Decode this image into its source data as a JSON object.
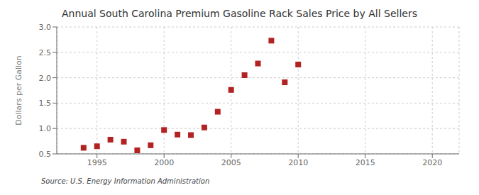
{
  "chart_data": {
    "type": "scatter",
    "title": "Annual South Carolina Premium Gasoline Rack Sales Price by All Sellers",
    "y_label": "Dollars per Gallon",
    "annotations": [
      "Source: U.S. Energy Information Administration"
    ],
    "x": [
      1994,
      1995,
      1996,
      1997,
      1998,
      1999,
      2000,
      2001,
      2002,
      2003,
      2004,
      2005,
      2006,
      2007,
      2008,
      2009,
      2010
    ],
    "values": [
      0.62,
      0.65,
      0.78,
      0.74,
      0.57,
      0.67,
      0.97,
      0.88,
      0.87,
      1.02,
      1.33,
      1.76,
      2.05,
      2.28,
      2.73,
      1.91,
      2.26
    ],
    "color": "#b22222",
    "marker": "square",
    "xlim": [
      1992,
      2022
    ],
    "ylim": [
      0.5,
      3.0
    ],
    "xticks": [
      1995,
      2000,
      2005,
      2010,
      2015,
      2020
    ],
    "yticks": [
      0.5,
      {
        "value": 1.0,
        "label": "1.0"
      },
      1.5,
      {
        "value": 2.0,
        "label": "2.0"
      },
      2.5,
      {
        "value": 3.0,
        "label": "3.0"
      }
    ],
    "grid": true
  }
}
